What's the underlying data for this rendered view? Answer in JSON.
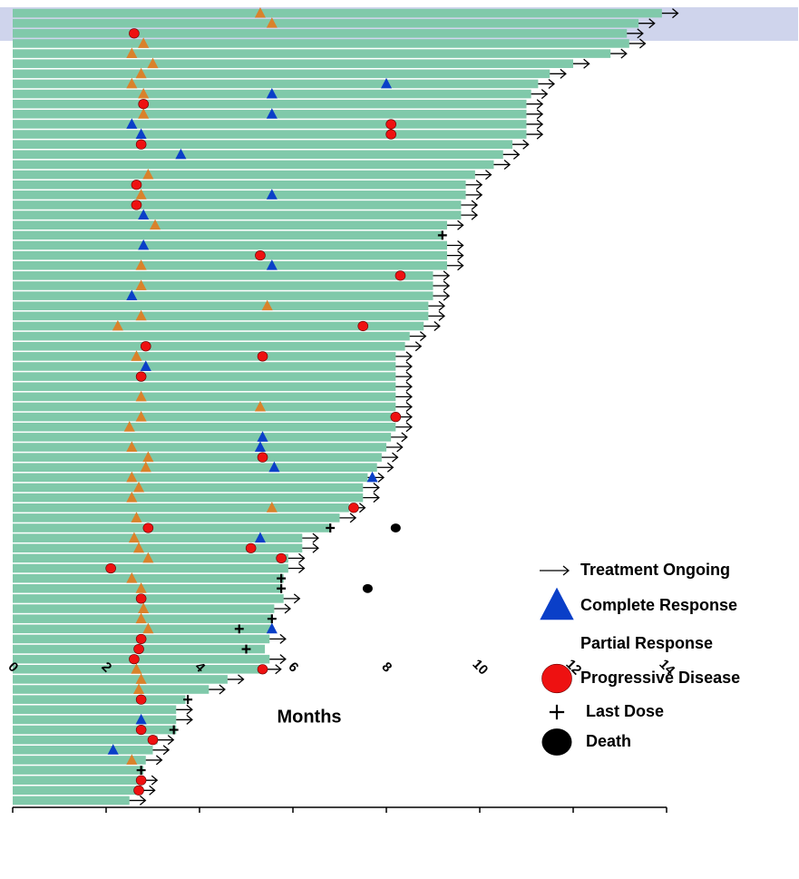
{
  "chart_data": {
    "type": "swimmer",
    "xlabel": "Months",
    "xlim": [
      0,
      14
    ],
    "xticks": [
      0,
      2,
      4,
      6,
      8,
      10,
      12,
      14
    ],
    "color": "#80c9aa",
    "categories": [
      null,
      null,
      null,
      null,
      null,
      null,
      null,
      null,
      null,
      null,
      null,
      null,
      null,
      null,
      null,
      null,
      null,
      null,
      null,
      null,
      null,
      null,
      null,
      null,
      null,
      null,
      null,
      null,
      null,
      null,
      null,
      null,
      null,
      null,
      null,
      null,
      null,
      null,
      null,
      null,
      null,
      null,
      null,
      null,
      null,
      null,
      null,
      null,
      null,
      null,
      null,
      null,
      null,
      null,
      null,
      null,
      null,
      null,
      null,
      null,
      null,
      null,
      null,
      null,
      null,
      null,
      null,
      null,
      null,
      null,
      null,
      null,
      null,
      null,
      null,
      null,
      null,
      null,
      null
    ],
    "values": [
      13.9,
      13.4,
      13.15,
      13.2,
      12.8,
      12.0,
      11.5,
      11.25,
      11.1,
      11.0,
      11.0,
      11.0,
      11.0,
      10.7,
      10.5,
      10.3,
      9.9,
      9.7,
      9.7,
      9.6,
      9.6,
      9.3,
      9.2,
      9.3,
      9.3,
      9.3,
      9.0,
      9.0,
      9.0,
      8.9,
      8.9,
      8.8,
      8.5,
      8.4,
      8.2,
      8.2,
      8.2,
      8.2,
      8.2,
      8.2,
      8.2,
      8.2,
      8.1,
      8.0,
      7.9,
      7.8,
      7.6,
      7.5,
      7.5,
      7.2,
      7.0,
      6.8,
      6.2,
      6.2,
      5.9,
      5.9,
      5.8,
      5.75,
      5.8,
      5.6,
      5.55,
      5.55,
      5.5,
      5.4,
      5.5,
      5.4,
      4.6,
      4.2,
      3.7,
      3.5,
      3.5,
      3.5,
      3.1,
      3.0,
      2.85,
      2.8,
      2.75,
      2.7,
      2.5
    ],
    "series": [
      {
        "name": "Treatment Ongoing",
        "marker": "arrow",
        "color": "#000000",
        "values": [
          13.9,
          13.4,
          13.15,
          13.2,
          12.8,
          12.0,
          11.5,
          11.25,
          11.1,
          11.0,
          11.0,
          11.0,
          11.0,
          10.7,
          10.5,
          10.3,
          9.9,
          9.7,
          9.7,
          9.6,
          9.6,
          9.3,
          null,
          9.3,
          9.3,
          9.3,
          9.0,
          9.0,
          9.0,
          8.9,
          8.9,
          8.8,
          8.5,
          8.4,
          8.2,
          8.2,
          8.2,
          8.2,
          8.2,
          8.2,
          8.2,
          8.2,
          8.1,
          8.0,
          7.9,
          7.8,
          7.6,
          7.5,
          7.5,
          7.2,
          7.0,
          null,
          6.2,
          6.2,
          5.9,
          5.9,
          null,
          null,
          5.8,
          5.6,
          null,
          null,
          5.5,
          null,
          5.5,
          5.4,
          4.6,
          4.2,
          null,
          3.5,
          3.5,
          null,
          3.1,
          3.0,
          2.85,
          null,
          2.75,
          2.7,
          2.5
        ]
      },
      {
        "name": "Complete Response",
        "marker": "triangle",
        "color": "#0a3fc8",
        "values": [
          null,
          null,
          null,
          null,
          null,
          null,
          null,
          8.0,
          5.55,
          null,
          5.55,
          2.55,
          2.75,
          null,
          3.6,
          null,
          null,
          null,
          5.55,
          null,
          2.8,
          null,
          null,
          2.8,
          null,
          5.55,
          null,
          null,
          2.55,
          null,
          null,
          null,
          null,
          null,
          null,
          2.85,
          null,
          null,
          null,
          null,
          null,
          null,
          5.35,
          5.3,
          null,
          5.6,
          7.7,
          null,
          null,
          null,
          null,
          null,
          5.3,
          null,
          null,
          null,
          null,
          null,
          null,
          null,
          null,
          5.55,
          null,
          null,
          null,
          null,
          null,
          null,
          null,
          null,
          2.75,
          null,
          null,
          2.15,
          null,
          null,
          null,
          null,
          null
        ]
      },
      {
        "name": "Partial Response",
        "marker": "triangle",
        "color": "#d9822b",
        "legend_color": "#ffffff",
        "values": [
          5.3,
          5.55,
          null,
          2.8,
          2.55,
          3.0,
          2.75,
          2.55,
          2.8,
          null,
          2.8,
          null,
          null,
          null,
          null,
          null,
          2.9,
          null,
          2.75,
          null,
          null,
          3.05,
          null,
          null,
          null,
          2.75,
          null,
          2.75,
          null,
          5.45,
          2.75,
          2.25,
          null,
          null,
          2.65,
          null,
          null,
          null,
          2.75,
          5.3,
          2.75,
          2.5,
          null,
          2.55,
          2.9,
          2.85,
          2.55,
          2.7,
          2.55,
          5.55,
          2.65,
          null,
          2.6,
          2.7,
          2.9,
          null,
          2.55,
          2.75,
          null,
          2.8,
          2.75,
          2.9,
          null,
          null,
          null,
          2.65,
          2.75,
          2.7,
          null,
          null,
          null,
          null,
          null,
          null,
          2.55,
          null,
          null,
          null,
          null
        ]
      },
      {
        "name": "Progressive Disease",
        "marker": "circle",
        "color": "#ee1111",
        "values": [
          null,
          null,
          2.6,
          null,
          null,
          null,
          null,
          null,
          null,
          2.8,
          null,
          8.1,
          8.1,
          2.75,
          null,
          null,
          null,
          2.65,
          null,
          2.65,
          null,
          null,
          null,
          null,
          5.3,
          null,
          8.3,
          null,
          null,
          null,
          null,
          7.5,
          null,
          2.85,
          5.35,
          null,
          2.75,
          null,
          null,
          null,
          8.2,
          null,
          null,
          null,
          5.35,
          null,
          null,
          null,
          null,
          7.3,
          null,
          2.9,
          null,
          5.1,
          5.75,
          2.1,
          null,
          null,
          2.75,
          null,
          null,
          null,
          2.75,
          2.7,
          2.6,
          5.35,
          null,
          null,
          2.75,
          null,
          null,
          2.75,
          3.0,
          null,
          null,
          null,
          2.75,
          2.7,
          null
        ]
      },
      {
        "name": "Last Dose",
        "marker": "plus",
        "color": "#000000",
        "values": [
          null,
          null,
          null,
          null,
          null,
          null,
          null,
          null,
          null,
          null,
          null,
          null,
          null,
          null,
          null,
          null,
          null,
          null,
          null,
          null,
          null,
          null,
          9.2,
          null,
          null,
          null,
          null,
          null,
          null,
          null,
          null,
          null,
          null,
          null,
          null,
          null,
          null,
          null,
          null,
          null,
          null,
          null,
          null,
          null,
          null,
          null,
          null,
          null,
          null,
          null,
          null,
          6.8,
          null,
          null,
          null,
          null,
          5.75,
          5.75,
          null,
          null,
          5.55,
          4.85,
          null,
          5.0,
          null,
          null,
          null,
          null,
          3.75,
          null,
          null,
          3.45,
          null,
          null,
          null,
          2.75,
          null,
          null,
          null
        ]
      },
      {
        "name": "Death",
        "marker": "dot",
        "color": "#000000",
        "values": [
          null,
          null,
          null,
          null,
          null,
          null,
          null,
          null,
          null,
          null,
          null,
          null,
          null,
          null,
          null,
          null,
          null,
          null,
          null,
          null,
          null,
          null,
          null,
          null,
          null,
          null,
          null,
          null,
          null,
          null,
          null,
          null,
          null,
          null,
          null,
          null,
          null,
          null,
          null,
          null,
          null,
          null,
          null,
          null,
          null,
          null,
          null,
          null,
          null,
          null,
          null,
          8.2,
          null,
          null,
          null,
          null,
          null,
          7.6,
          null,
          null,
          null,
          null,
          null,
          null,
          null,
          null,
          null,
          null,
          null,
          null,
          null,
          null,
          null,
          null,
          null,
          null,
          null,
          null,
          null
        ]
      }
    ]
  }
}
